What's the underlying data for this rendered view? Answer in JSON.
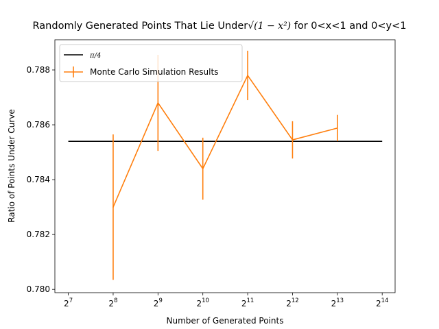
{
  "chart_data": {
    "type": "line",
    "title": {
      "prefix": "Randomly Generated Points That Lie Under",
      "math": "√(1 − x²)",
      "suffix": "for 0<x<1 and 0<y<1"
    },
    "xlabel": "Number of Generated Points",
    "ylabel": "Ratio of Points Under Curve",
    "x_scale": "log2",
    "x_ticks": [
      128,
      256,
      512,
      1024,
      2048,
      4096,
      8192,
      16384
    ],
    "x_tick_labels": [
      "2^7",
      "2^8",
      "2^9",
      "2^10",
      "2^11",
      "2^12",
      "2^13",
      "2^14"
    ],
    "y_ticks": [
      0.78,
      0.782,
      0.784,
      0.786,
      0.788
    ],
    "y_tick_labels": [
      "0.780",
      "0.782",
      "0.784",
      "0.786",
      "0.788"
    ],
    "xlim": [
      104,
      20000
    ],
    "ylim": [
      0.77988,
      0.7891
    ],
    "legend_position": "upper-left",
    "reference_line": {
      "name": "π/4",
      "color": "#000000",
      "y": 0.785398,
      "x_range": [
        128,
        16384
      ]
    },
    "series": [
      {
        "name": "Monte Carlo Simulation Results",
        "color": "#ff7f0e",
        "x": [
          256,
          512,
          1024,
          2048,
          4096,
          8192
        ],
        "y": [
          0.783,
          0.7868,
          0.7844,
          0.7878,
          0.78545,
          0.78588
        ],
        "error": [
          0.00265,
          0.00175,
          0.00113,
          0.0009,
          0.00068,
          0.00048
        ]
      }
    ]
  }
}
